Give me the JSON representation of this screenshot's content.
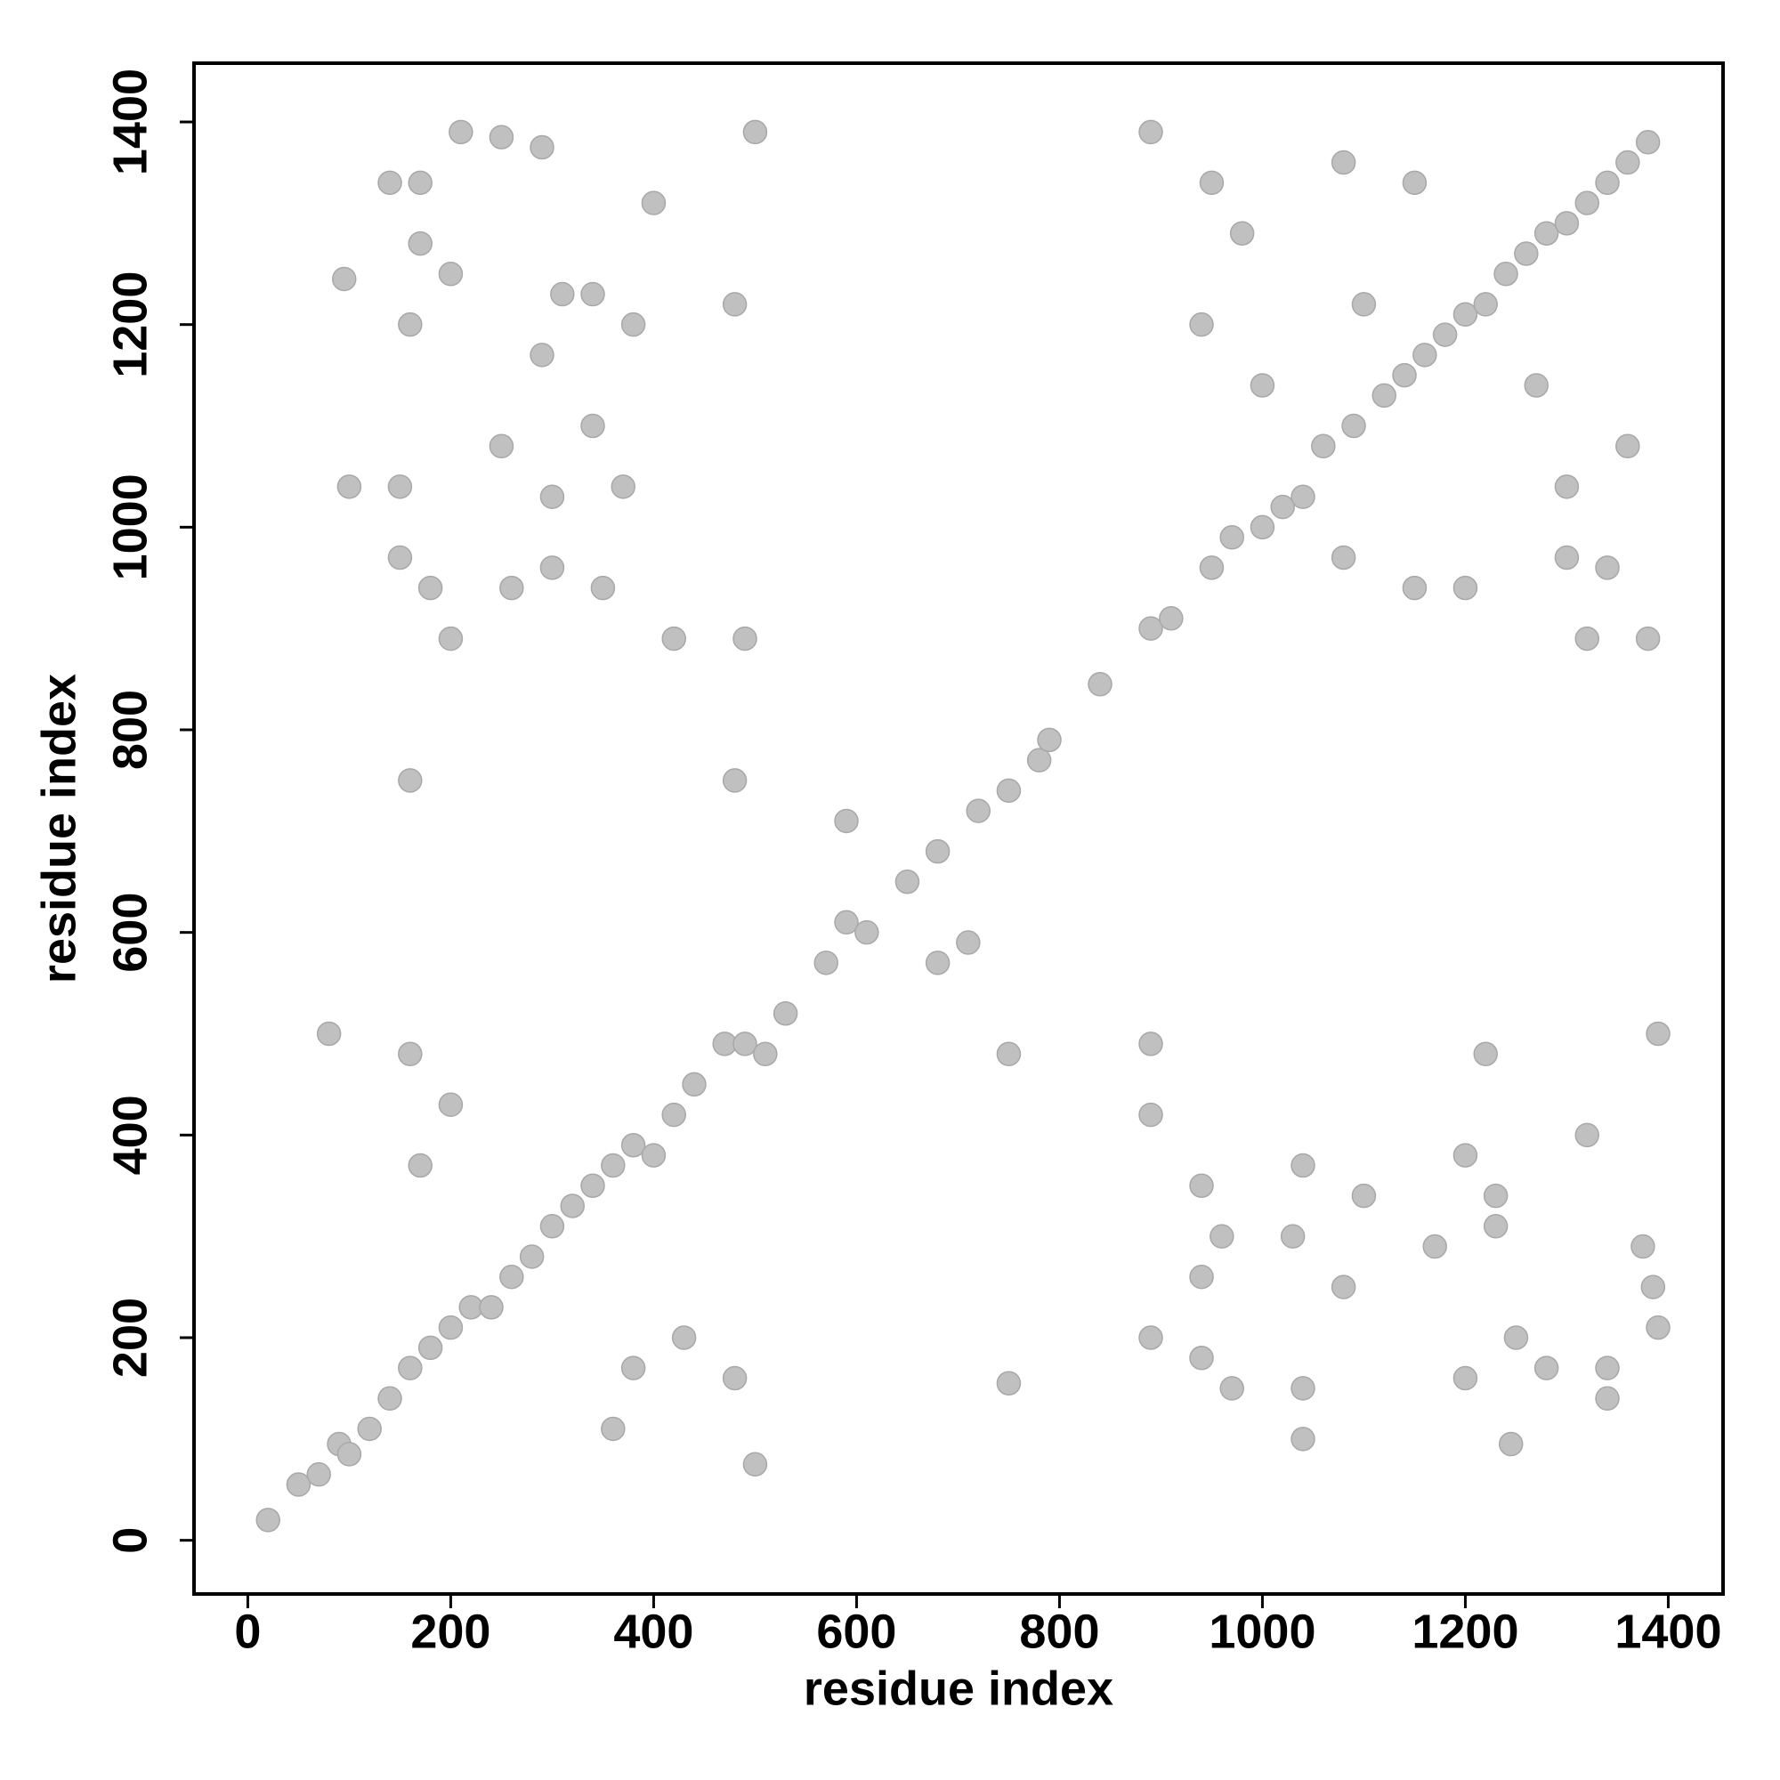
{
  "chart_data": {
    "type": "scatter",
    "xlabel": "residue index",
    "ylabel": "residue index",
    "xlim": [
      -53,
      1454
    ],
    "ylim": [
      -53,
      1458
    ],
    "xticks": [
      0,
      200,
      400,
      600,
      800,
      1000,
      1200,
      1400
    ],
    "yticks": [
      0,
      200,
      400,
      600,
      800,
      1000,
      1200,
      1400
    ],
    "color": "#c0c0c0",
    "x": [
      20,
      50,
      70,
      90,
      100,
      120,
      140,
      160,
      180,
      200,
      220,
      240,
      260,
      280,
      300,
      320,
      340,
      360,
      380,
      400,
      420,
      440,
      470,
      490,
      510,
      530,
      570,
      590,
      610,
      650,
      680,
      720,
      750,
      780,
      790,
      840,
      890,
      910,
      950,
      970,
      1000,
      1020,
      1040,
      1060,
      1090,
      1120,
      1140,
      1160,
      1180,
      1200,
      1220,
      1240,
      1260,
      1280,
      1300,
      1320,
      1340,
      1360,
      1380,
      95,
      140,
      170,
      200,
      210,
      250,
      290,
      310,
      340,
      380,
      400,
      480,
      500,
      150,
      100,
      300,
      370,
      150,
      180,
      200,
      260,
      300,
      350,
      420,
      490,
      170,
      160,
      290,
      250,
      340,
      1245,
      1340,
      1340,
      1250,
      1390,
      1385,
      1375,
      1230,
      1230,
      1200,
      1320,
      1220,
      1390,
      1040,
      1040,
      1030,
      1040,
      970,
      940,
      890,
      940,
      960,
      940,
      890,
      890,
      1280,
      1200,
      1170,
      1080,
      1100,
      890,
      950,
      1080,
      1150,
      980,
      940,
      1000,
      1100,
      1300,
      1340,
      1380,
      1200,
      1080,
      1300,
      1360,
      1270,
      1150,
      1320,
      160,
      80,
      200,
      170,
      380,
      430,
      480,
      500,
      360,
      480,
      160,
      750,
      750,
      590,
      680,
      710
    ],
    "y": [
      20,
      55,
      65,
      95,
      85,
      110,
      140,
      170,
      190,
      210,
      230,
      230,
      260,
      280,
      310,
      330,
      350,
      370,
      390,
      380,
      420,
      450,
      490,
      490,
      480,
      520,
      570,
      610,
      600,
      650,
      680,
      720,
      740,
      770,
      790,
      845,
      900,
      910,
      960,
      990,
      1000,
      1020,
      1030,
      1080,
      1100,
      1130,
      1150,
      1170,
      1190,
      1210,
      1220,
      1250,
      1270,
      1290,
      1300,
      1320,
      1340,
      1360,
      1380,
      1245,
      1340,
      1340,
      1250,
      1390,
      1385,
      1375,
      1230,
      1230,
      1200,
      1320,
      1220,
      1390,
      1040,
      1040,
      1030,
      1040,
      970,
      940,
      890,
      940,
      960,
      940,
      890,
      890,
      1280,
      1200,
      1170,
      1080,
      1100,
      95,
      140,
      170,
      200,
      210,
      250,
      290,
      310,
      340,
      380,
      400,
      480,
      500,
      150,
      100,
      300,
      370,
      150,
      180,
      200,
      260,
      300,
      350,
      420,
      490,
      170,
      160,
      290,
      250,
      340,
      1390,
      1340,
      1360,
      1340,
      1290,
      1200,
      1140,
      1220,
      970,
      960,
      890,
      940,
      970,
      1040,
      1080,
      1140,
      940,
      890,
      480,
      500,
      430,
      370,
      170,
      200,
      160,
      75,
      110,
      750,
      750,
      480,
      155,
      710,
      570,
      590
    ]
  }
}
